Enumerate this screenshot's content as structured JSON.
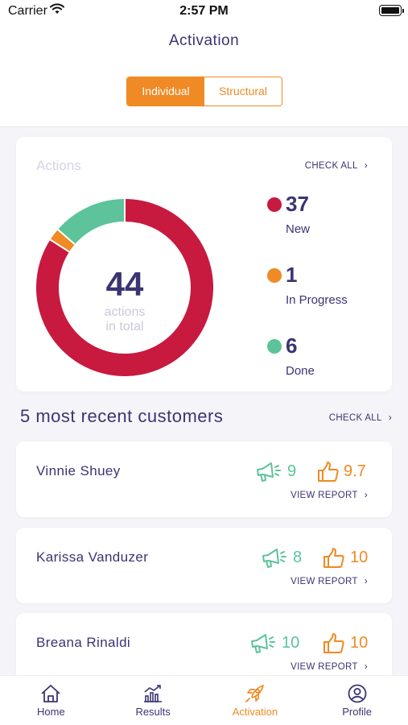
{
  "status_bar": {
    "carrier": "Carrier",
    "time": "2:57 PM"
  },
  "header": {
    "title": "Activation"
  },
  "segmented": {
    "options": [
      "Individual",
      "Structural"
    ],
    "selected": "Individual"
  },
  "actions": {
    "title": "Actions",
    "check_all": "CHECK ALL",
    "total": "44",
    "total_label_1": "actions",
    "total_label_2": "in total",
    "legend": [
      {
        "count": "37",
        "label": "New",
        "color": "#c8193f"
      },
      {
        "count": "1",
        "label": "In Progress",
        "color": "#ef8a24"
      },
      {
        "count": "6",
        "label": "Done",
        "color": "#5cc39a"
      }
    ]
  },
  "chart_data": {
    "type": "pie",
    "categories": [
      "New",
      "In Progress",
      "Done"
    ],
    "values": [
      37,
      1,
      6
    ],
    "colors": [
      "#c8193f",
      "#ef8a24",
      "#5cc39a"
    ],
    "title": "Actions"
  },
  "recent": {
    "title": "5 most recent customers",
    "check_all": "CHECK ALL",
    "customers": [
      {
        "name": "Vinnie Shuey",
        "megaphone_count": "9",
        "rating": "9.7",
        "report_label": "VIEW REPORT"
      },
      {
        "name": "Karissa Vanduzer",
        "megaphone_count": "8",
        "rating": "10",
        "report_label": "VIEW REPORT"
      },
      {
        "name": "Breana Rinaldi",
        "megaphone_count": "10",
        "rating": "10",
        "report_label": "VIEW REPORT"
      }
    ]
  },
  "tabs": [
    {
      "label": "Home",
      "icon": "home-icon"
    },
    {
      "label": "Results",
      "icon": "chart-icon"
    },
    {
      "label": "Activation",
      "icon": "rocket-icon",
      "active": true
    },
    {
      "label": "Profile",
      "icon": "profile-icon"
    }
  ],
  "colors": {
    "accent": "#ef8a24",
    "primary_text": "#3b3472",
    "green": "#5cc39a",
    "red": "#c8193f"
  }
}
